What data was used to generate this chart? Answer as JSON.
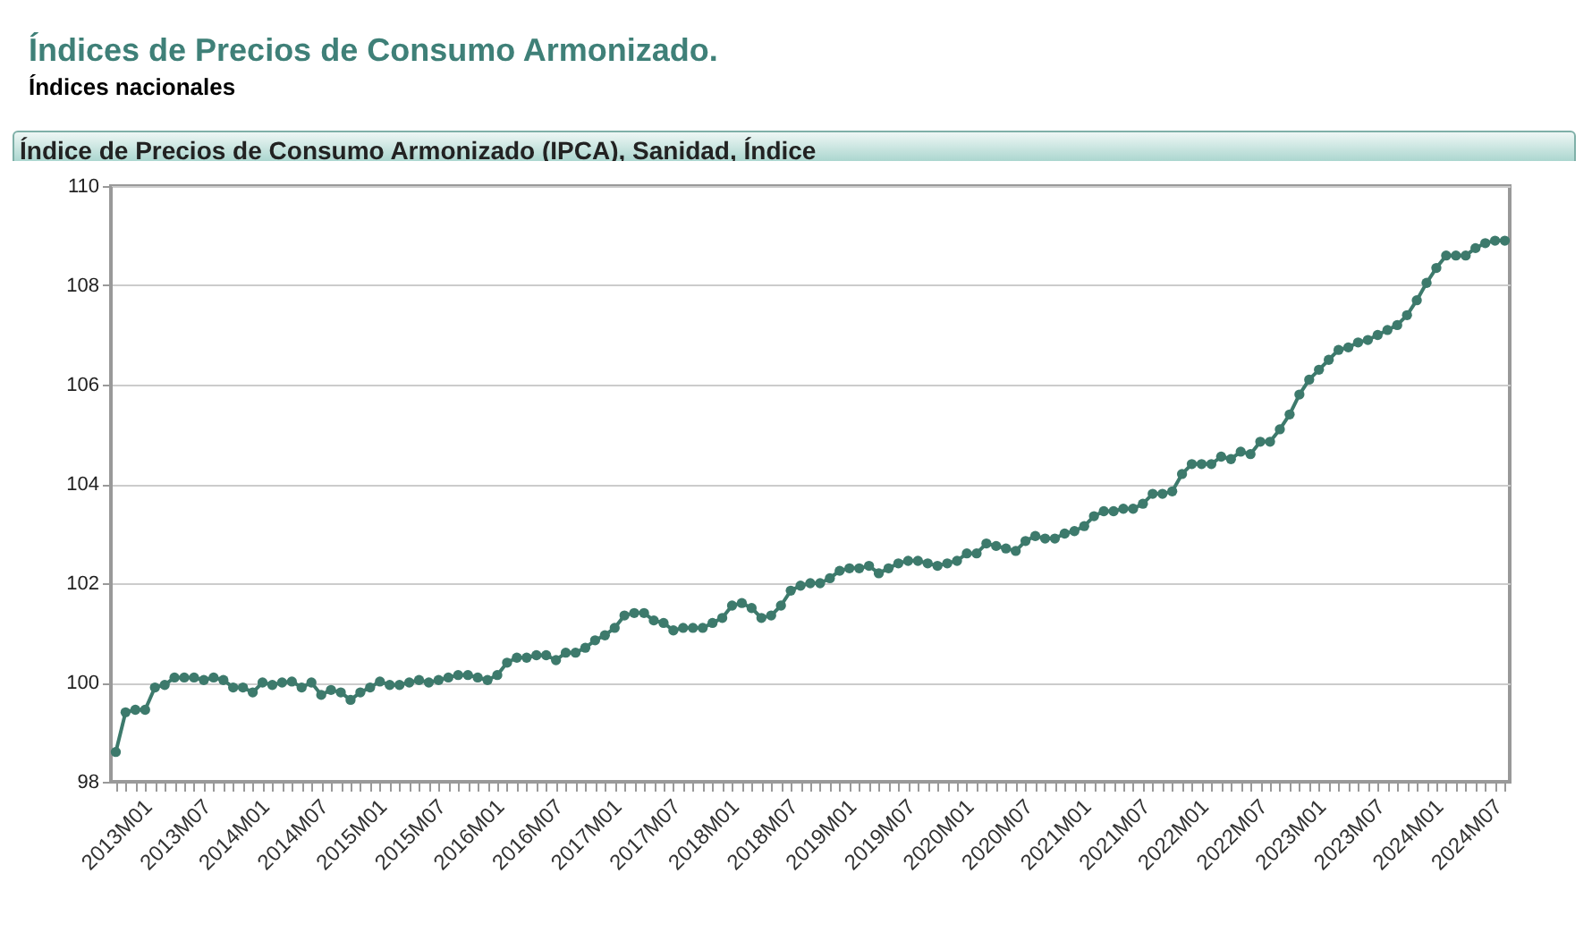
{
  "chart_data": {
    "type": "line",
    "title": "Índices de Precios de Consumo Armonizado.",
    "subtitle": "Índices nacionales",
    "annotations": [
      "Índice de Precios de Consumo Armonizado (IPCA), Sanidad, Índice"
    ],
    "categories": [
      "2013M01",
      null,
      null,
      null,
      null,
      null,
      "2013M07",
      null,
      null,
      null,
      null,
      null,
      "2014M01",
      null,
      null,
      null,
      null,
      null,
      "2014M07",
      null,
      null,
      null,
      null,
      null,
      "2015M01",
      null,
      null,
      null,
      null,
      null,
      "2015M07",
      null,
      null,
      null,
      null,
      null,
      "2016M01",
      null,
      null,
      null,
      null,
      null,
      "2016M07",
      null,
      null,
      null,
      null,
      null,
      "2017M01",
      null,
      null,
      null,
      null,
      null,
      "2017M07",
      null,
      null,
      null,
      null,
      null,
      "2018M01",
      null,
      null,
      null,
      null,
      null,
      "2018M07",
      null,
      null,
      null,
      null,
      null,
      "2019M01",
      null,
      null,
      null,
      null,
      null,
      "2019M07",
      null,
      null,
      null,
      null,
      null,
      "2020M01",
      null,
      null,
      null,
      null,
      null,
      "2020M07",
      null,
      null,
      null,
      null,
      null,
      "2021M01",
      null,
      null,
      null,
      null,
      null,
      "2021M07",
      null,
      null,
      null,
      null,
      null,
      "2022M01",
      null,
      null,
      null,
      null,
      null,
      "2022M07",
      null,
      null,
      null,
      null,
      null,
      "2023M01",
      null,
      null,
      null,
      null,
      null,
      "2023M07",
      null,
      null,
      null,
      null,
      null,
      "2024M01",
      null,
      null,
      null,
      null,
      null,
      "2024M07",
      null,
      null,
      null,
      null
    ],
    "series": [
      {
        "color": "#3d7a6c",
        "values": [
          98.6,
          99.4,
          99.45,
          99.45,
          99.9,
          99.95,
          100.1,
          100.1,
          100.1,
          100.05,
          100.1,
          100.05,
          99.9,
          99.9,
          99.8,
          100.0,
          99.95,
          100.0,
          100.02,
          99.9,
          100.0,
          99.75,
          99.85,
          99.8,
          99.65,
          99.8,
          99.9,
          100.02,
          99.95,
          99.95,
          100.0,
          100.05,
          100.0,
          100.05,
          100.1,
          100.15,
          100.15,
          100.1,
          100.05,
          100.15,
          100.4,
          100.5,
          100.5,
          100.55,
          100.55,
          100.45,
          100.6,
          100.6,
          100.7,
          100.85,
          100.95,
          101.1,
          101.35,
          101.4,
          101.4,
          101.25,
          101.2,
          101.05,
          101.1,
          101.1,
          101.1,
          101.2,
          101.3,
          101.55,
          101.6,
          101.5,
          101.3,
          101.35,
          101.55,
          101.85,
          101.95,
          102.0,
          102.0,
          102.1,
          102.25,
          102.3,
          102.3,
          102.35,
          102.2,
          102.3,
          102.4,
          102.45,
          102.45,
          102.4,
          102.35,
          102.4,
          102.45,
          102.6,
          102.6,
          102.8,
          102.75,
          102.7,
          102.65,
          102.85,
          102.95,
          102.9,
          102.9,
          103.0,
          103.05,
          103.15,
          103.35,
          103.45,
          103.45,
          103.5,
          103.5,
          103.6,
          103.8,
          103.8,
          103.85,
          104.2,
          104.4,
          104.4,
          104.4,
          104.55,
          104.5,
          104.65,
          104.6,
          104.85,
          104.85,
          105.1,
          105.4,
          105.8,
          106.1,
          106.3,
          106.5,
          106.7,
          106.75,
          106.85,
          106.9,
          107.0,
          107.1,
          107.2,
          107.4,
          107.7,
          108.05,
          108.35,
          108.6,
          108.6,
          108.6,
          108.75,
          108.85,
          108.9,
          108.9
        ]
      }
    ],
    "ylim": [
      98,
      110
    ],
    "yticks": [
      98,
      100,
      102,
      104,
      106,
      108,
      110
    ],
    "grid": "y",
    "marker": "circle"
  }
}
